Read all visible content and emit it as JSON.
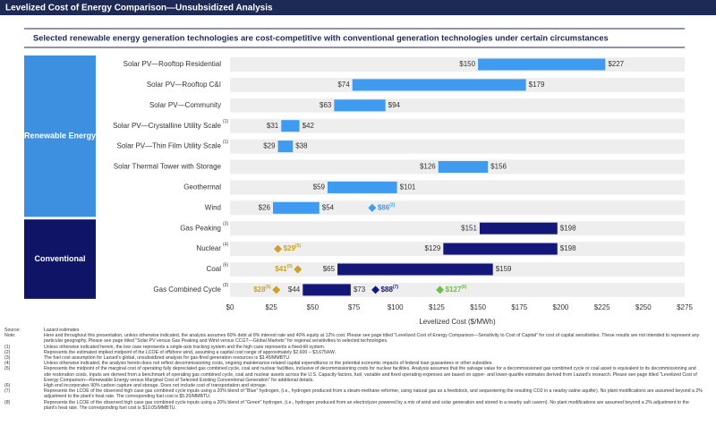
{
  "header": "Levelized Cost of Energy Comparison—Unsubsidized Analysis",
  "chart_data": {
    "type": "range_bar",
    "title": "Selected renewable energy generation technologies are cost-competitive with conventional generation technologies under certain circumstances",
    "x_label": "Levelized Cost ($/MWh)",
    "xlim": [
      0,
      275
    ],
    "xticks": [
      {
        "value": 0,
        "label": "$0"
      },
      {
        "value": 25,
        "label": "$25"
      },
      {
        "value": 50,
        "label": "$50"
      },
      {
        "value": 75,
        "label": "$75"
      },
      {
        "value": 100,
        "label": "$100"
      },
      {
        "value": 125,
        "label": "$125"
      },
      {
        "value": 150,
        "label": "$150"
      },
      {
        "value": 175,
        "label": "$175"
      },
      {
        "value": 200,
        "label": "$200"
      },
      {
        "value": 225,
        "label": "$225"
      },
      {
        "value": 250,
        "label": "$250"
      },
      {
        "value": 275,
        "label": "$275"
      }
    ],
    "grid": false,
    "sections": [
      {
        "label": "Renewable Energy",
        "color": "#3d8fe0",
        "bar_color": "#3e9bf0",
        "rows": [
          {
            "category": "Solar PV—Rooftop Residential",
            "note": null,
            "low": 150,
            "high": 227,
            "low_label": "$150",
            "high_label": "$227",
            "markers": []
          },
          {
            "category": "Solar PV—Rooftop C&I",
            "note": null,
            "low": 74,
            "high": 179,
            "low_label": "$74",
            "high_label": "$179",
            "markers": []
          },
          {
            "category": "Solar PV—Community",
            "note": null,
            "low": 63,
            "high": 94,
            "low_label": "$63",
            "high_label": "$94",
            "markers": []
          },
          {
            "category": "Solar PV—Crystalline Utility Scale",
            "note": "(1)",
            "low": 31,
            "high": 42,
            "low_label": "$31",
            "high_label": "$42",
            "markers": []
          },
          {
            "category": "Solar PV—Thin Film Utility Scale",
            "note": "(1)",
            "low": 29,
            "high": 38,
            "low_label": "$29",
            "high_label": "$38",
            "markers": []
          },
          {
            "category": "Solar Thermal Tower with Storage",
            "note": null,
            "low": 126,
            "high": 156,
            "low_label": "$126",
            "high_label": "$156",
            "markers": []
          },
          {
            "category": "Geothermal",
            "note": null,
            "low": 59,
            "high": 101,
            "low_label": "$59",
            "high_label": "$101",
            "markers": []
          },
          {
            "category": "Wind",
            "note": null,
            "low": 26,
            "high": 54,
            "low_label": "$26",
            "high_label": "$54",
            "markers": [
              {
                "value": 86,
                "label": "$86",
                "note": "(2)",
                "color": "#3e9bf0",
                "side": "right"
              }
            ]
          }
        ]
      },
      {
        "label": "Conventional",
        "color": "#0f1466",
        "bar_color": "#14177a",
        "rows": [
          {
            "category": "Gas Peaking",
            "note": "(3)",
            "low": 151,
            "high": 198,
            "low_label": "$151",
            "high_label": "$198",
            "markers": []
          },
          {
            "category": "Nuclear",
            "note": "(4)",
            "low": 129,
            "high": 198,
            "low_label": "$129",
            "high_label": "$198",
            "markers": [
              {
                "value": 29,
                "label": "$29",
                "note": "(5)",
                "color": "#c9a227",
                "side": "right"
              }
            ]
          },
          {
            "category": "Coal",
            "note": "(6)",
            "low": 65,
            "high": 159,
            "low_label": "$65",
            "high_label": "$159",
            "markers": [
              {
                "value": 41,
                "label": "$41",
                "note": "(5)",
                "color": "#c9a227",
                "side": "left"
              }
            ]
          },
          {
            "category": "Gas Combined Cycle",
            "note": "(3)",
            "low": 44,
            "high": 73,
            "low_label": "$44",
            "high_label": "$73",
            "markers": [
              {
                "value": 28,
                "label": "$28",
                "note": "(5)",
                "color": "#c9a227",
                "side": "left"
              },
              {
                "value": 88,
                "label": "$88",
                "note": "(7)",
                "color": "#14177a",
                "side": "right"
              },
              {
                "value": 127,
                "label": "$127",
                "note": "(8)",
                "color": "#6cc04a",
                "side": "right"
              }
            ]
          }
        ]
      }
    ]
  },
  "footnotes": [
    {
      "mark": "Source:",
      "text": "Lazard estimates"
    },
    {
      "mark": "Note:",
      "text": "Here and throughout this presentation, unless otherwise indicated, the analysis assumes 60% debt at 8% interest rate and 40% equity at 12% cost. Please see page titled \"Levelized Cost of Energy Comparison—Sensitivity to Cost of Capital\" for cost of capital sensitivities. These results are not intended to represent any particular geography. Please see page titled \"Solar PV versus Gas Peaking and Wind versus CCGT—Global Markets\" for regional sensitivities to selected technologies."
    },
    {
      "mark": "(1)",
      "text": "Unless otherwise indicated herein, the low case represents a single-axis tracking system and the high case represents a fixed-tilt system."
    },
    {
      "mark": "(2)",
      "text": "Represents the estimated implied midpoint of the LCOE of offshore wind, assuming a capital cost range of approximately $2,600 – $3,675/kW."
    },
    {
      "mark": "(3)",
      "text": "The fuel cost assumption for Lazard's global, unsubsidized analysis for gas-fired generation resources is $3.45/MMBTU."
    },
    {
      "mark": "(4)",
      "text": "Unless otherwise indicated, the analysis herein does not reflect decommissioning costs, ongoing maintenance-related capital expenditures or the potential economic impacts of federal loan guarantees or other subsidies."
    },
    {
      "mark": "(5)",
      "text": "Represents the midpoint of the marginal cost of operating fully depreciated gas combined cycle, coal and nuclear facilities, inclusive of decommissioning costs for nuclear facilities. Analysis assumes that the salvage value for a decommissioned gas combined cycle or coal asset is equivalent to its decommissioning and site restoration costs. Inputs are derived from a benchmark of operating gas combined cycle, coal and nuclear assets across the U.S. Capacity factors, fuel, variable and fixed operating expenses are based on upper- and lower-quartile estimates derived from Lazard's research. Please see page titled \"Levelized Cost of Energy Comparison—Renewable Energy versus Marginal Cost of Selected Existing Conventional Generation\" for additional details."
    },
    {
      "mark": "(6)",
      "text": "High end incorporates 90% carbon capture and storage. Does not include cost of transportation and storage."
    },
    {
      "mark": "(7)",
      "text": "Represents the LCOE of the observed high case gas combined cycle inputs using a 20% blend of \"Blue\" hydrogen, (i.e., hydrogen produced from a steam-methane reformer, using natural gas as a feedstock, and sequestering the resulting CO2 in a nearby saline aquifer). No plant modifications are assumed beyond a 2% adjustment to the plant's heat rate. The corresponding fuel cost is $5.20/MMBTU."
    },
    {
      "mark": "(8)",
      "text": "Represents the LCOE of the observed high case gas combined cycle inputs using a 20% blend of \"Green\" hydrogen, (i.e., hydrogen produced from an electrolyzer powered by a mix of wind and solar generation and stored in a nearby salt cavern). No plant modifications are assumed beyond a 2% adjustment to the plant's heat rate. The corresponding fuel cost is $10.05/MMBTU."
    }
  ]
}
